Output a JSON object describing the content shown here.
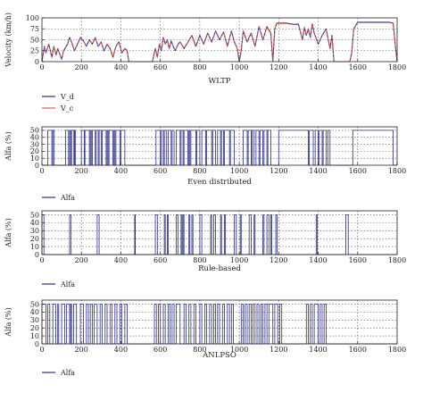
{
  "chart_data": [
    {
      "type": "line",
      "xlabel": "WLTP",
      "ylabel": "Velocity (km/h)",
      "xlim": [
        0,
        1800
      ],
      "ylim": [
        0,
        100
      ],
      "xticks": [
        "0",
        "200",
        "400",
        "600",
        "800",
        "1000",
        "1200",
        "1400",
        "1600",
        "1800"
      ],
      "yticks": [
        "0",
        "25",
        "50",
        "75",
        "100"
      ],
      "grid": true,
      "legend": "bottom-left",
      "series": [
        {
          "name": "V_d",
          "color": "#2b2b8f",
          "x": [
            0,
            12,
            20,
            35,
            50,
            60,
            72,
            80,
            100,
            110,
            130,
            140,
            150,
            165,
            180,
            195,
            210,
            225,
            240,
            255,
            270,
            285,
            300,
            315,
            330,
            345,
            360,
            375,
            390,
            405,
            420,
            432,
            440,
            470,
            500,
            530,
            560,
            575,
            585,
            595,
            605,
            615,
            625,
            635,
            645,
            655,
            665,
            675,
            690,
            700,
            720,
            740,
            760,
            780,
            800,
            820,
            840,
            860,
            880,
            900,
            920,
            940,
            960,
            975,
            990,
            1000,
            1010,
            1020,
            1040,
            1060,
            1080,
            1100,
            1120,
            1140,
            1160,
            1170,
            1180,
            1190,
            1200,
            1240,
            1280,
            1300,
            1320,
            1330,
            1340,
            1350,
            1360,
            1370,
            1380,
            1400,
            1420,
            1440,
            1460,
            1470,
            1480,
            1520,
            1560,
            1570,
            1580,
            1600,
            1620,
            1660,
            1720,
            1760,
            1780,
            1790,
            1800
          ],
          "values": [
            0,
            35,
            20,
            40,
            10,
            35,
            15,
            30,
            5,
            25,
            40,
            55,
            45,
            25,
            40,
            55,
            48,
            35,
            50,
            40,
            55,
            35,
            45,
            25,
            40,
            30,
            10,
            35,
            45,
            20,
            30,
            25,
            0,
            0,
            0,
            0,
            0,
            30,
            10,
            40,
            25,
            55,
            40,
            50,
            30,
            48,
            35,
            25,
            40,
            45,
            30,
            45,
            60,
            35,
            60,
            40,
            65,
            45,
            70,
            50,
            68,
            35,
            70,
            45,
            30,
            0,
            25,
            70,
            45,
            65,
            35,
            80,
            50,
            80,
            65,
            0,
            75,
            88,
            88,
            88,
            85,
            86,
            50,
            78,
            60,
            75,
            55,
            86,
            65,
            40,
            60,
            75,
            30,
            60,
            0,
            0,
            0,
            20,
            75,
            90,
            90,
            90,
            90,
            90,
            88,
            40,
            0
          ]
        },
        {
          "name": "V_c",
          "color": "#e8553a",
          "x": [
            0,
            12,
            20,
            35,
            50,
            60,
            72,
            80,
            100,
            110,
            130,
            140,
            150,
            165,
            180,
            195,
            210,
            225,
            240,
            255,
            270,
            285,
            300,
            315,
            330,
            345,
            360,
            375,
            390,
            405,
            420,
            432,
            440,
            470,
            500,
            530,
            560,
            575,
            585,
            595,
            605,
            615,
            625,
            635,
            645,
            655,
            665,
            675,
            690,
            700,
            720,
            740,
            760,
            780,
            800,
            820,
            840,
            860,
            880,
            900,
            920,
            940,
            960,
            975,
            990,
            1000,
            1010,
            1020,
            1040,
            1060,
            1080,
            1100,
            1120,
            1140,
            1160,
            1170,
            1180,
            1190,
            1200,
            1240,
            1280,
            1300,
            1320,
            1330,
            1340,
            1350,
            1360,
            1370,
            1380,
            1400,
            1420,
            1440,
            1460,
            1470,
            1480,
            1520,
            1560,
            1570,
            1580,
            1600,
            1620,
            1660,
            1720,
            1760,
            1780,
            1790,
            1800
          ],
          "values": [
            0,
            34,
            21,
            39,
            11,
            34,
            16,
            29,
            6,
            24,
            39,
            54,
            46,
            26,
            39,
            54,
            47,
            36,
            49,
            41,
            54,
            36,
            44,
            26,
            39,
            31,
            11,
            34,
            44,
            21,
            29,
            26,
            0,
            0,
            0,
            0,
            0,
            29,
            11,
            39,
            26,
            54,
            41,
            49,
            31,
            47,
            36,
            26,
            39,
            44,
            31,
            44,
            59,
            36,
            59,
            41,
            64,
            46,
            69,
            51,
            67,
            36,
            69,
            46,
            31,
            0,
            24,
            69,
            46,
            64,
            36,
            79,
            51,
            79,
            64,
            0,
            74,
            87,
            87,
            87,
            84,
            85,
            51,
            77,
            61,
            74,
            56,
            85,
            64,
            41,
            59,
            74,
            31,
            59,
            0,
            0,
            0,
            21,
            74,
            89,
            89,
            89,
            89,
            89,
            87,
            41,
            0
          ]
        }
      ]
    },
    {
      "type": "line",
      "xlabel": "Even distributed",
      "ylabel": "Alfa (%)",
      "xlim": [
        0,
        1800
      ],
      "ylim": [
        0,
        55
      ],
      "xticks": [
        "0",
        "200",
        "400",
        "600",
        "800",
        "1000",
        "1200",
        "1400",
        "1600",
        "1800"
      ],
      "yticks": [
        "0",
        "10",
        "20",
        "30",
        "40",
        "50"
      ],
      "grid": true,
      "legend": "bottom-left",
      "series": [
        {
          "name": "Alfa",
          "color": "#2b2b8f",
          "high": 50,
          "on_intervals": [
            [
              30,
              50
            ],
            [
              55,
              62
            ],
            [
              120,
              135
            ],
            [
              140,
              145
            ],
            [
              150,
              162
            ],
            [
              165,
              170
            ],
            [
              200,
              215
            ],
            [
              218,
              240
            ],
            [
              245,
              250
            ],
            [
              255,
              270
            ],
            [
              275,
              285
            ],
            [
              290,
              300
            ],
            [
              305,
              325
            ],
            [
              330,
              335
            ],
            [
              340,
              360
            ],
            [
              365,
              370
            ],
            [
              375,
              395
            ],
            [
              400,
              420
            ],
            [
              578,
              600
            ],
            [
              605,
              615
            ],
            [
              620,
              630
            ],
            [
              640,
              655
            ],
            [
              660,
              670
            ],
            [
              680,
              700
            ],
            [
              705,
              715
            ],
            [
              720,
              740
            ],
            [
              745,
              750
            ],
            [
              755,
              780
            ],
            [
              785,
              800
            ],
            [
              810,
              830
            ],
            [
              835,
              860
            ],
            [
              865,
              880
            ],
            [
              890,
              905
            ],
            [
              910,
              920
            ],
            [
              925,
              950
            ],
            [
              955,
              975
            ],
            [
              1020,
              1040
            ],
            [
              1045,
              1060
            ],
            [
              1065,
              1075
            ],
            [
              1085,
              1100
            ],
            [
              1105,
              1120
            ],
            [
              1125,
              1140
            ],
            [
              1145,
              1160
            ],
            [
              1200,
              1350
            ],
            [
              1355,
              1375
            ],
            [
              1385,
              1400
            ],
            [
              1405,
              1420
            ],
            [
              1425,
              1440
            ],
            [
              1450,
              1460
            ],
            [
              1575,
              1780
            ]
          ]
        }
      ]
    },
    {
      "type": "line",
      "xlabel": "Rule-based",
      "ylabel": "Alfa (%)",
      "xlim": [
        0,
        1800
      ],
      "ylim": [
        0,
        55
      ],
      "xticks": [
        "0",
        "200",
        "400",
        "600",
        "800",
        "1000",
        "1200",
        "1400",
        "1600",
        "1800"
      ],
      "yticks": [
        "0",
        "10",
        "20",
        "30",
        "40",
        "50"
      ],
      "grid": true,
      "legend": "bottom-left",
      "series": [
        {
          "name": "Alfa",
          "color": "#2b2b8f",
          "high": 50,
          "on_intervals": [
            [
              0,
              10
            ],
            [
              140,
              148
            ],
            [
              280,
              290
            ],
            [
              470,
              473
            ],
            [
              575,
              585
            ],
            [
              620,
              625
            ],
            [
              635,
              640
            ],
            [
              680,
              690
            ],
            [
              705,
              710
            ],
            [
              715,
              720
            ],
            [
              745,
              750
            ],
            [
              760,
              765
            ],
            [
              800,
              810
            ],
            [
              855,
              860
            ],
            [
              870,
              880
            ],
            [
              905,
              910
            ],
            [
              925,
              930
            ],
            [
              975,
              985
            ],
            [
              1005,
              1010
            ],
            [
              1050,
              1060
            ],
            [
              1075,
              1080
            ],
            [
              1120,
              1125
            ],
            [
              1140,
              1150
            ],
            [
              1160,
              1165
            ],
            [
              1185,
              1192
            ],
            [
              1390,
              1395
            ],
            [
              1540,
              1552
            ]
          ]
        }
      ]
    },
    {
      "type": "line",
      "xlabel": "ANLPSO",
      "ylabel": "Alfa (%)",
      "xlim": [
        0,
        1800
      ],
      "ylim": [
        0,
        55
      ],
      "xticks": [
        "0",
        "200",
        "400",
        "600",
        "800",
        "1000",
        "1200",
        "1400",
        "1600",
        "1800"
      ],
      "yticks": [
        "0",
        "10",
        "20",
        "30",
        "40",
        "50"
      ],
      "grid": true,
      "legend": "bottom-left",
      "series": [
        {
          "name": "Alfa",
          "color": "#2b2b8f",
          "high": 50,
          "on_intervals": [
            [
              0,
              20
            ],
            [
              30,
              40
            ],
            [
              55,
              70
            ],
            [
              80,
              85
            ],
            [
              100,
              115
            ],
            [
              125,
              140
            ],
            [
              145,
              150
            ],
            [
              160,
              175
            ],
            [
              195,
              210
            ],
            [
              225,
              235
            ],
            [
              245,
              255
            ],
            [
              265,
              280
            ],
            [
              295,
              305
            ],
            [
              320,
              330
            ],
            [
              345,
              355
            ],
            [
              370,
              380
            ],
            [
              395,
              405
            ],
            [
              420,
              432
            ],
            [
              570,
              580
            ],
            [
              590,
              600
            ],
            [
              615,
              625
            ],
            [
              640,
              650
            ],
            [
              660,
              670
            ],
            [
              680,
              700
            ],
            [
              720,
              730
            ],
            [
              745,
              755
            ],
            [
              770,
              780
            ],
            [
              800,
              810
            ],
            [
              825,
              835
            ],
            [
              850,
              860
            ],
            [
              870,
              880
            ],
            [
              890,
              900
            ],
            [
              915,
              925
            ],
            [
              940,
              950
            ],
            [
              960,
              970
            ],
            [
              1010,
              1020
            ],
            [
              1030,
              1040
            ],
            [
              1050,
              1060
            ],
            [
              1070,
              1080
            ],
            [
              1090,
              1100
            ],
            [
              1110,
              1120
            ],
            [
              1130,
              1140
            ],
            [
              1150,
              1170
            ],
            [
              1180,
              1195
            ],
            [
              1205,
              1215
            ],
            [
              1340,
              1350
            ],
            [
              1360,
              1370
            ],
            [
              1380,
              1400
            ],
            [
              1410,
              1420
            ],
            [
              1430,
              1440
            ]
          ]
        }
      ]
    }
  ]
}
